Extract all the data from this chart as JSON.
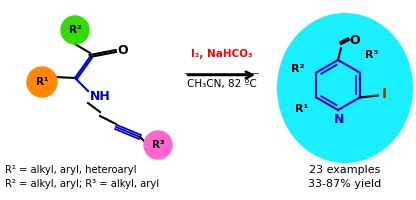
{
  "bg_color": "#ffffff",
  "arrow_color": "#000000",
  "reagent_color": "#ff0000",
  "reagent_line1": "I₂, NaHCO₃",
  "reagent_line2": "CH₃CN, 82 ºC",
  "r1_label": "R¹",
  "r2_label": "R²",
  "r3_label": "R³",
  "r1_color": "#ff8800",
  "r2_color": "#33dd00",
  "r3_color": "#ff66cc",
  "cyan_bubble_color": "#00eeff",
  "bond_blue": "#0000cc",
  "bond_black": "#000000",
  "nh_color": "#0000cc",
  "n_color": "#0000cc",
  "iodo_color": "#aa3300",
  "footnote1": "R¹ = alkyl, aryl, heteroaryl",
  "footnote2": "R² = alkyl, aryl; R³ = alkyl, aryl",
  "result1": "23 examples",
  "result2": "33-87% yield",
  "figsize": [
    4.16,
    2.0
  ],
  "dpi": 100
}
